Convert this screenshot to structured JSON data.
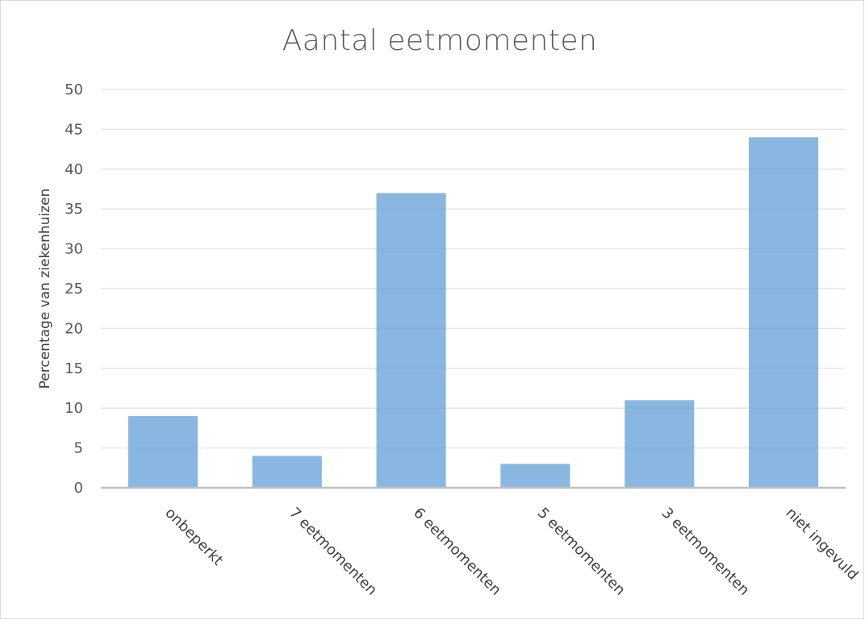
{
  "chart_data": {
    "type": "bar",
    "title": "Aantal eetmomenten",
    "xlabel": "",
    "ylabel": "Percentage van ziekenhuizen",
    "categories": [
      "onbeperkt",
      "7 eetmomenten",
      "6 eetmomenten",
      "5 eetmomenten",
      "3 eetmomenten",
      "niet ingevuld"
    ],
    "values": [
      9,
      4,
      37,
      3,
      11,
      44
    ],
    "ylim": [
      0,
      50
    ],
    "yticks": [
      0,
      5,
      10,
      15,
      20,
      25,
      30,
      35,
      40,
      45,
      50
    ],
    "grid": true,
    "legend": "none",
    "colors": {
      "bar": "#5b9bd5",
      "grid": "#e6e6e6",
      "axis": "#bfbfbf"
    }
  }
}
